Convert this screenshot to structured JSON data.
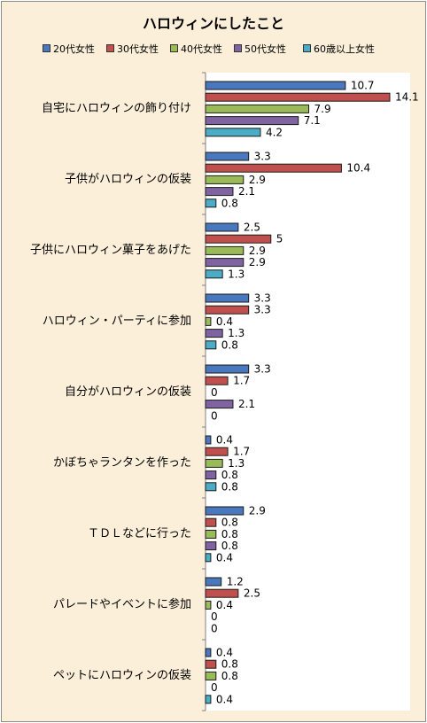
{
  "chart_data": {
    "type": "bar",
    "orientation": "horizontal",
    "title": "ハロウィンにしたこと",
    "categories": [
      "自宅にハロウィンの飾り付け",
      "子供がハロウィンの仮装",
      "子供にハロウィン菓子をあげた",
      "ハロウィン・パーティに参加",
      "自分がハロウィンの仮装",
      "かぼちゃランタンを作った",
      "ＴＤＬなどに行った",
      "パレードやイベントに参加",
      "ペットにハロウィンの仮装"
    ],
    "series": [
      {
        "name": "20代女性",
        "color": "#4A78BE",
        "values": [
          10.7,
          3.3,
          2.5,
          3.3,
          3.3,
          0.4,
          2.9,
          1.2,
          0.4
        ]
      },
      {
        "name": "30代女性",
        "color": "#C0504D",
        "values": [
          14.1,
          10.4,
          5,
          3.3,
          1.7,
          1.7,
          0.8,
          2.5,
          0.8
        ]
      },
      {
        "name": "40代女性",
        "color": "#9BBB59",
        "values": [
          7.9,
          2.9,
          2.9,
          0.4,
          0,
          1.3,
          0.8,
          0.4,
          0.8
        ]
      },
      {
        "name": "50代女性",
        "color": "#8064A2",
        "values": [
          7.1,
          2.1,
          2.9,
          1.3,
          2.1,
          0.8,
          0.8,
          0,
          0
        ]
      },
      {
        "name": "60歳以上女性",
        "color": "#4BACC6",
        "values": [
          4.2,
          0.8,
          1.3,
          0.8,
          0,
          0.8,
          0.4,
          0,
          0.4
        ]
      }
    ],
    "legend": "top",
    "grid": false,
    "xlim": [
      0,
      16
    ]
  }
}
